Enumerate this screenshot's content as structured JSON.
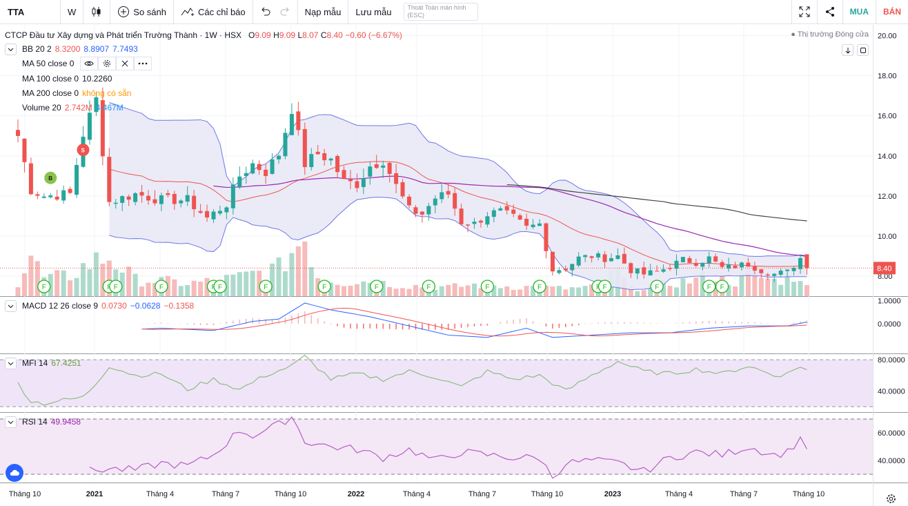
{
  "toolbar": {
    "symbol": "TTA",
    "interval": "W",
    "compare_label": "So sánh",
    "indicators_label": "Các chỉ báo",
    "load_template_label": "Nạp mẫu",
    "save_template_label": "Lưu mẫu",
    "exit_fullscreen_line1": "Thoát Toàn màn hình",
    "exit_fullscreen_line2": "(ESC)",
    "buy_label": "MUA",
    "sell_label": "BÁN"
  },
  "header": {
    "title": "CTCP Đầu tư Xây dựng và Phát triển Trường Thành · 1W · HSX",
    "o_label": "O",
    "o_value": "9.09",
    "h_label": "H",
    "h_value": "9.09",
    "l_label": "L",
    "l_value": "8.07",
    "c_label": "C",
    "c_value": "8.40",
    "change": "−0.60 (−6.67%)",
    "market_status": "● Thị trường Đóng cửa"
  },
  "legend": {
    "bb_label": "BB 20 2",
    "bb_values": [
      "8.3200",
      "8.8907",
      "7.7493"
    ],
    "ma50_label": "MA 50 close 0",
    "ma100_label": "MA 100 close 0",
    "ma100_value": "10.2260",
    "ma200_label": "MA 200 close 0",
    "ma200_value": "không có sẵn",
    "volume_label": "Volume 20",
    "volume_values": [
      "2.742M",
      "4.467M"
    ],
    "macd_label": "MACD 12 26 close 9",
    "macd_values": [
      "0.0730",
      "−0.0628",
      "−0.1358"
    ],
    "mfi_label": "MFI 14",
    "mfi_value": "67.4251",
    "rsi_label": "RSI 14",
    "rsi_value": "49.9458"
  },
  "colors": {
    "up": "#26a69a",
    "down": "#ef5350",
    "bb_band": "#6f76e6",
    "bb_fill": "#e8e9f5",
    "bb_basis": "#ef5350",
    "ma50": "#9c27b0",
    "ma100": "#424242",
    "macd": "#2962ff",
    "signal": "#ff6d00",
    "mfi": "#8fba83",
    "rsi": "#b45dc7",
    "price_label": "#ef5350"
  },
  "chart_data": {
    "type": "line",
    "price_axis": {
      "ticks": [
        "20.00",
        "18.00",
        "16.00",
        "14.00",
        "12.00",
        "10.00",
        "8.00"
      ],
      "last_price": "8.40",
      "range": [
        7.0,
        20.4
      ]
    },
    "macd_axis": {
      "ticks": [
        "1.0000",
        "0.0000"
      ],
      "range": [
        -1.3,
        1.2
      ]
    },
    "mfi_axis": {
      "ticks": [
        "80.0000",
        "40.0000"
      ],
      "bands": [
        20,
        80
      ],
      "range": [
        13,
        88
      ]
    },
    "rsi_axis": {
      "ticks": [
        "60.0000",
        "40.0000"
      ],
      "bands": [
        30,
        70
      ],
      "range": [
        24,
        75
      ]
    },
    "x_labels": [
      "Tháng 10",
      "2021",
      "Tháng 4",
      "Tháng 7",
      "Tháng 10",
      "2022",
      "Tháng 4",
      "Tháng 7",
      "Tháng 10",
      "2023",
      "Tháng 4",
      "Tháng 7",
      "Tháng 10"
    ],
    "close_key": [
      [
        0,
        15.0
      ],
      [
        2,
        12.3
      ],
      [
        4,
        12.0
      ],
      [
        8,
        12.1
      ],
      [
        10,
        15.1
      ],
      [
        12,
        16.8
      ],
      [
        14,
        11.7
      ],
      [
        18,
        12.1
      ],
      [
        22,
        11.8
      ],
      [
        26,
        11.8
      ],
      [
        29,
        10.9
      ],
      [
        32,
        11.6
      ],
      [
        34,
        13.0
      ],
      [
        36,
        13.6
      ],
      [
        38,
        13.2
      ],
      [
        40,
        14.1
      ],
      [
        42,
        16.4
      ],
      [
        44,
        13.6
      ],
      [
        46,
        14.1
      ],
      [
        48,
        13.8
      ],
      [
        50,
        12.7
      ],
      [
        52,
        12.6
      ],
      [
        54,
        13.5
      ],
      [
        56,
        13.8
      ],
      [
        58,
        12.5
      ],
      [
        60,
        11.3
      ],
      [
        62,
        11.1
      ],
      [
        64,
        11.9
      ],
      [
        66,
        12.1
      ],
      [
        68,
        10.7
      ],
      [
        70,
        10.6
      ],
      [
        72,
        11.1
      ],
      [
        74,
        11.2
      ],
      [
        76,
        10.9
      ],
      [
        78,
        10.4
      ],
      [
        80,
        10.6
      ],
      [
        82,
        8.3
      ],
      [
        84,
        8.4
      ],
      [
        86,
        8.9
      ],
      [
        88,
        9.0
      ],
      [
        90,
        8.9
      ],
      [
        92,
        9.0
      ],
      [
        94,
        8.3
      ],
      [
        96,
        8.1
      ],
      [
        98,
        8.2
      ],
      [
        100,
        8.5
      ],
      [
        102,
        8.8
      ],
      [
        104,
        8.7
      ],
      [
        106,
        8.9
      ],
      [
        108,
        8.4
      ],
      [
        110,
        8.5
      ],
      [
        112,
        8.6
      ],
      [
        114,
        8.3
      ],
      [
        116,
        8.1
      ],
      [
        118,
        8.2
      ],
      [
        120,
        8.9
      ],
      [
        121,
        8.4
      ]
    ],
    "volume_key": [
      [
        0,
        1.0
      ],
      [
        2,
        3.2
      ],
      [
        4,
        1.4
      ],
      [
        8,
        1.6
      ],
      [
        10,
        2.3
      ],
      [
        12,
        2.8
      ],
      [
        14,
        3.1
      ],
      [
        18,
        1.3
      ],
      [
        22,
        1.2
      ],
      [
        26,
        1.0
      ],
      [
        30,
        1.2
      ],
      [
        34,
        1.5
      ],
      [
        38,
        2.0
      ],
      [
        40,
        2.2
      ],
      [
        42,
        3.5
      ],
      [
        44,
        4.8
      ],
      [
        46,
        1.6
      ],
      [
        50,
        1.1
      ],
      [
        54,
        1.2
      ],
      [
        58,
        0.9
      ],
      [
        62,
        0.8
      ],
      [
        66,
        0.7
      ],
      [
        70,
        0.9
      ],
      [
        74,
        0.8
      ],
      [
        80,
        0.7
      ],
      [
        84,
        0.6
      ],
      [
        88,
        0.7
      ],
      [
        92,
        1.9
      ],
      [
        94,
        0.6
      ],
      [
        98,
        0.8
      ],
      [
        100,
        1.0
      ],
      [
        104,
        1.3
      ],
      [
        106,
        1.6
      ],
      [
        110,
        1.1
      ],
      [
        112,
        1.8
      ],
      [
        116,
        1.2
      ],
      [
        120,
        1.7
      ],
      [
        121,
        0.7
      ]
    ],
    "macd_key": [
      [
        0,
        0.6
      ],
      [
        10,
        0.0
      ],
      [
        14,
        -0.3
      ],
      [
        22,
        -0.2
      ],
      [
        30,
        -0.3
      ],
      [
        36,
        0.1
      ],
      [
        40,
        0.2
      ],
      [
        44,
        0.9
      ],
      [
        48,
        0.6
      ],
      [
        54,
        0.3
      ],
      [
        60,
        -0.1
      ],
      [
        66,
        -0.5
      ],
      [
        72,
        -0.6
      ],
      [
        78,
        -0.2
      ],
      [
        82,
        -0.6
      ],
      [
        88,
        -0.5
      ],
      [
        94,
        -0.4
      ],
      [
        100,
        -0.4
      ],
      [
        106,
        -0.2
      ],
      [
        112,
        -0.1
      ],
      [
        118,
        -0.1
      ],
      [
        121,
        0.07
      ]
    ],
    "mfi_key": [
      [
        0,
        50
      ],
      [
        2,
        27
      ],
      [
        4,
        24
      ],
      [
        6,
        27
      ],
      [
        10,
        32
      ],
      [
        12,
        50
      ],
      [
        14,
        72
      ],
      [
        18,
        60
      ],
      [
        22,
        62
      ],
      [
        26,
        42
      ],
      [
        30,
        55
      ],
      [
        34,
        42
      ],
      [
        38,
        60
      ],
      [
        42,
        72
      ],
      [
        44,
        84
      ],
      [
        48,
        55
      ],
      [
        52,
        62
      ],
      [
        56,
        55
      ],
      [
        60,
        65
      ],
      [
        64,
        58
      ],
      [
        68,
        45
      ],
      [
        72,
        65
      ],
      [
        76,
        55
      ],
      [
        80,
        60
      ],
      [
        84,
        40
      ],
      [
        88,
        60
      ],
      [
        92,
        78
      ],
      [
        96,
        65
      ],
      [
        100,
        62
      ],
      [
        104,
        68
      ],
      [
        108,
        62
      ],
      [
        112,
        72
      ],
      [
        116,
        60
      ],
      [
        118,
        62
      ],
      [
        120,
        72
      ],
      [
        121,
        67
      ]
    ],
    "rsi_key": [
      [
        0,
        36
      ],
      [
        2,
        40
      ],
      [
        4,
        28
      ],
      [
        6,
        29
      ],
      [
        10,
        32
      ],
      [
        14,
        34
      ],
      [
        18,
        33
      ],
      [
        22,
        38
      ],
      [
        26,
        36
      ],
      [
        30,
        44
      ],
      [
        34,
        62
      ],
      [
        36,
        58
      ],
      [
        40,
        66
      ],
      [
        42,
        72
      ],
      [
        44,
        54
      ],
      [
        48,
        50
      ],
      [
        52,
        48
      ],
      [
        56,
        42
      ],
      [
        60,
        48
      ],
      [
        64,
        40
      ],
      [
        68,
        46
      ],
      [
        72,
        44
      ],
      [
        76,
        42
      ],
      [
        80,
        42
      ],
      [
        82,
        28
      ],
      [
        84,
        38
      ],
      [
        88,
        40
      ],
      [
        92,
        38
      ],
      [
        96,
        32
      ],
      [
        100,
        42
      ],
      [
        104,
        46
      ],
      [
        108,
        44
      ],
      [
        112,
        50
      ],
      [
        116,
        44
      ],
      [
        118,
        46
      ],
      [
        120,
        56
      ],
      [
        121,
        50
      ]
    ],
    "markers": [
      {
        "i": 5,
        "label": "B",
        "color": "#8bc34a",
        "price": 12.9
      },
      {
        "i": 10,
        "label": "S",
        "color": "#ef5350",
        "price": 14.3
      }
    ],
    "earnings_letter": "F",
    "earnings_i": [
      4,
      14,
      15,
      22,
      30,
      31,
      38,
      47,
      55,
      63,
      72,
      80,
      89,
      90,
      98,
      106,
      108
    ]
  }
}
